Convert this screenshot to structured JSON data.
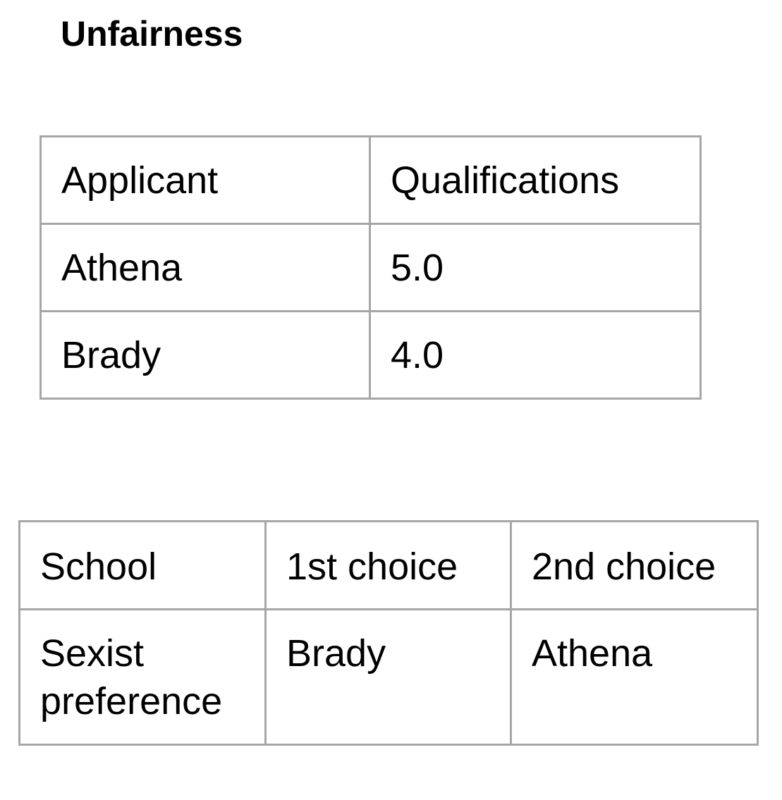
{
  "title": "Unfairness",
  "applicants_table": {
    "headers": [
      "Applicant",
      "Qualifications"
    ],
    "rows": [
      [
        "Athena",
        "5.0"
      ],
      [
        "Brady",
        "4.0"
      ]
    ]
  },
  "schools_table": {
    "headers": [
      "School",
      "1st choice",
      "2nd choice"
    ],
    "rows": [
      [
        "Sexist preference",
        "Brady",
        "Athena"
      ]
    ]
  }
}
